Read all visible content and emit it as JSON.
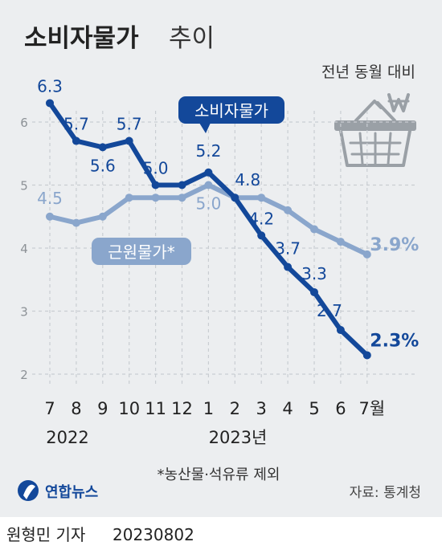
{
  "header": {
    "title": "소비자물가",
    "title_suffix": "추이",
    "comparison_note": "전년 동월 대비"
  },
  "colors": {
    "panel_bg": "#eceef0",
    "cpi": "#13489a",
    "core": "#8aa6cc",
    "grid": "#c9cdd2",
    "text": "#222222"
  },
  "icons": {
    "basket": "shopping-basket-won-icon"
  },
  "chart_data": {
    "type": "line",
    "categories": [
      "7",
      "8",
      "9",
      "10",
      "11",
      "12",
      "1",
      "2",
      "3",
      "4",
      "5",
      "6",
      "7월"
    ],
    "year_labels": [
      "2022",
      "2023년"
    ],
    "ylim": [
      2,
      6.5
    ],
    "yticks": [
      2,
      3,
      4,
      5,
      6
    ],
    "grid": "dashed-horizontal",
    "series": [
      {
        "name": "소비자물가",
        "color": "#13489a",
        "values": [
          6.3,
          5.7,
          5.6,
          5.7,
          5.0,
          5.0,
          5.2,
          4.8,
          4.2,
          3.7,
          3.3,
          2.7,
          2.3
        ],
        "labels": [
          "6.3",
          "5.7",
          "5.6",
          "5.7",
          "5.0",
          "",
          "5.2",
          "4.8",
          "4.2",
          "3.7",
          "3.3",
          "2.7",
          "2.3%"
        ]
      },
      {
        "name": "근원물가*",
        "color": "#8aa6cc",
        "values": [
          4.5,
          4.4,
          4.5,
          4.8,
          4.8,
          4.8,
          5.0,
          4.8,
          4.8,
          4.6,
          4.3,
          4.1,
          3.9
        ],
        "labels": [
          "4.5",
          "",
          "",
          "",
          "",
          "",
          "5.0",
          "",
          "",
          "",
          "",
          "",
          "3.9%"
        ]
      }
    ]
  },
  "notes": {
    "footnote": "*농산물·석유류 제외",
    "source": "자료: 통계청",
    "brand": "연합뉴스"
  },
  "credit": {
    "reporter": "원형민 기자",
    "date": "20230802"
  }
}
